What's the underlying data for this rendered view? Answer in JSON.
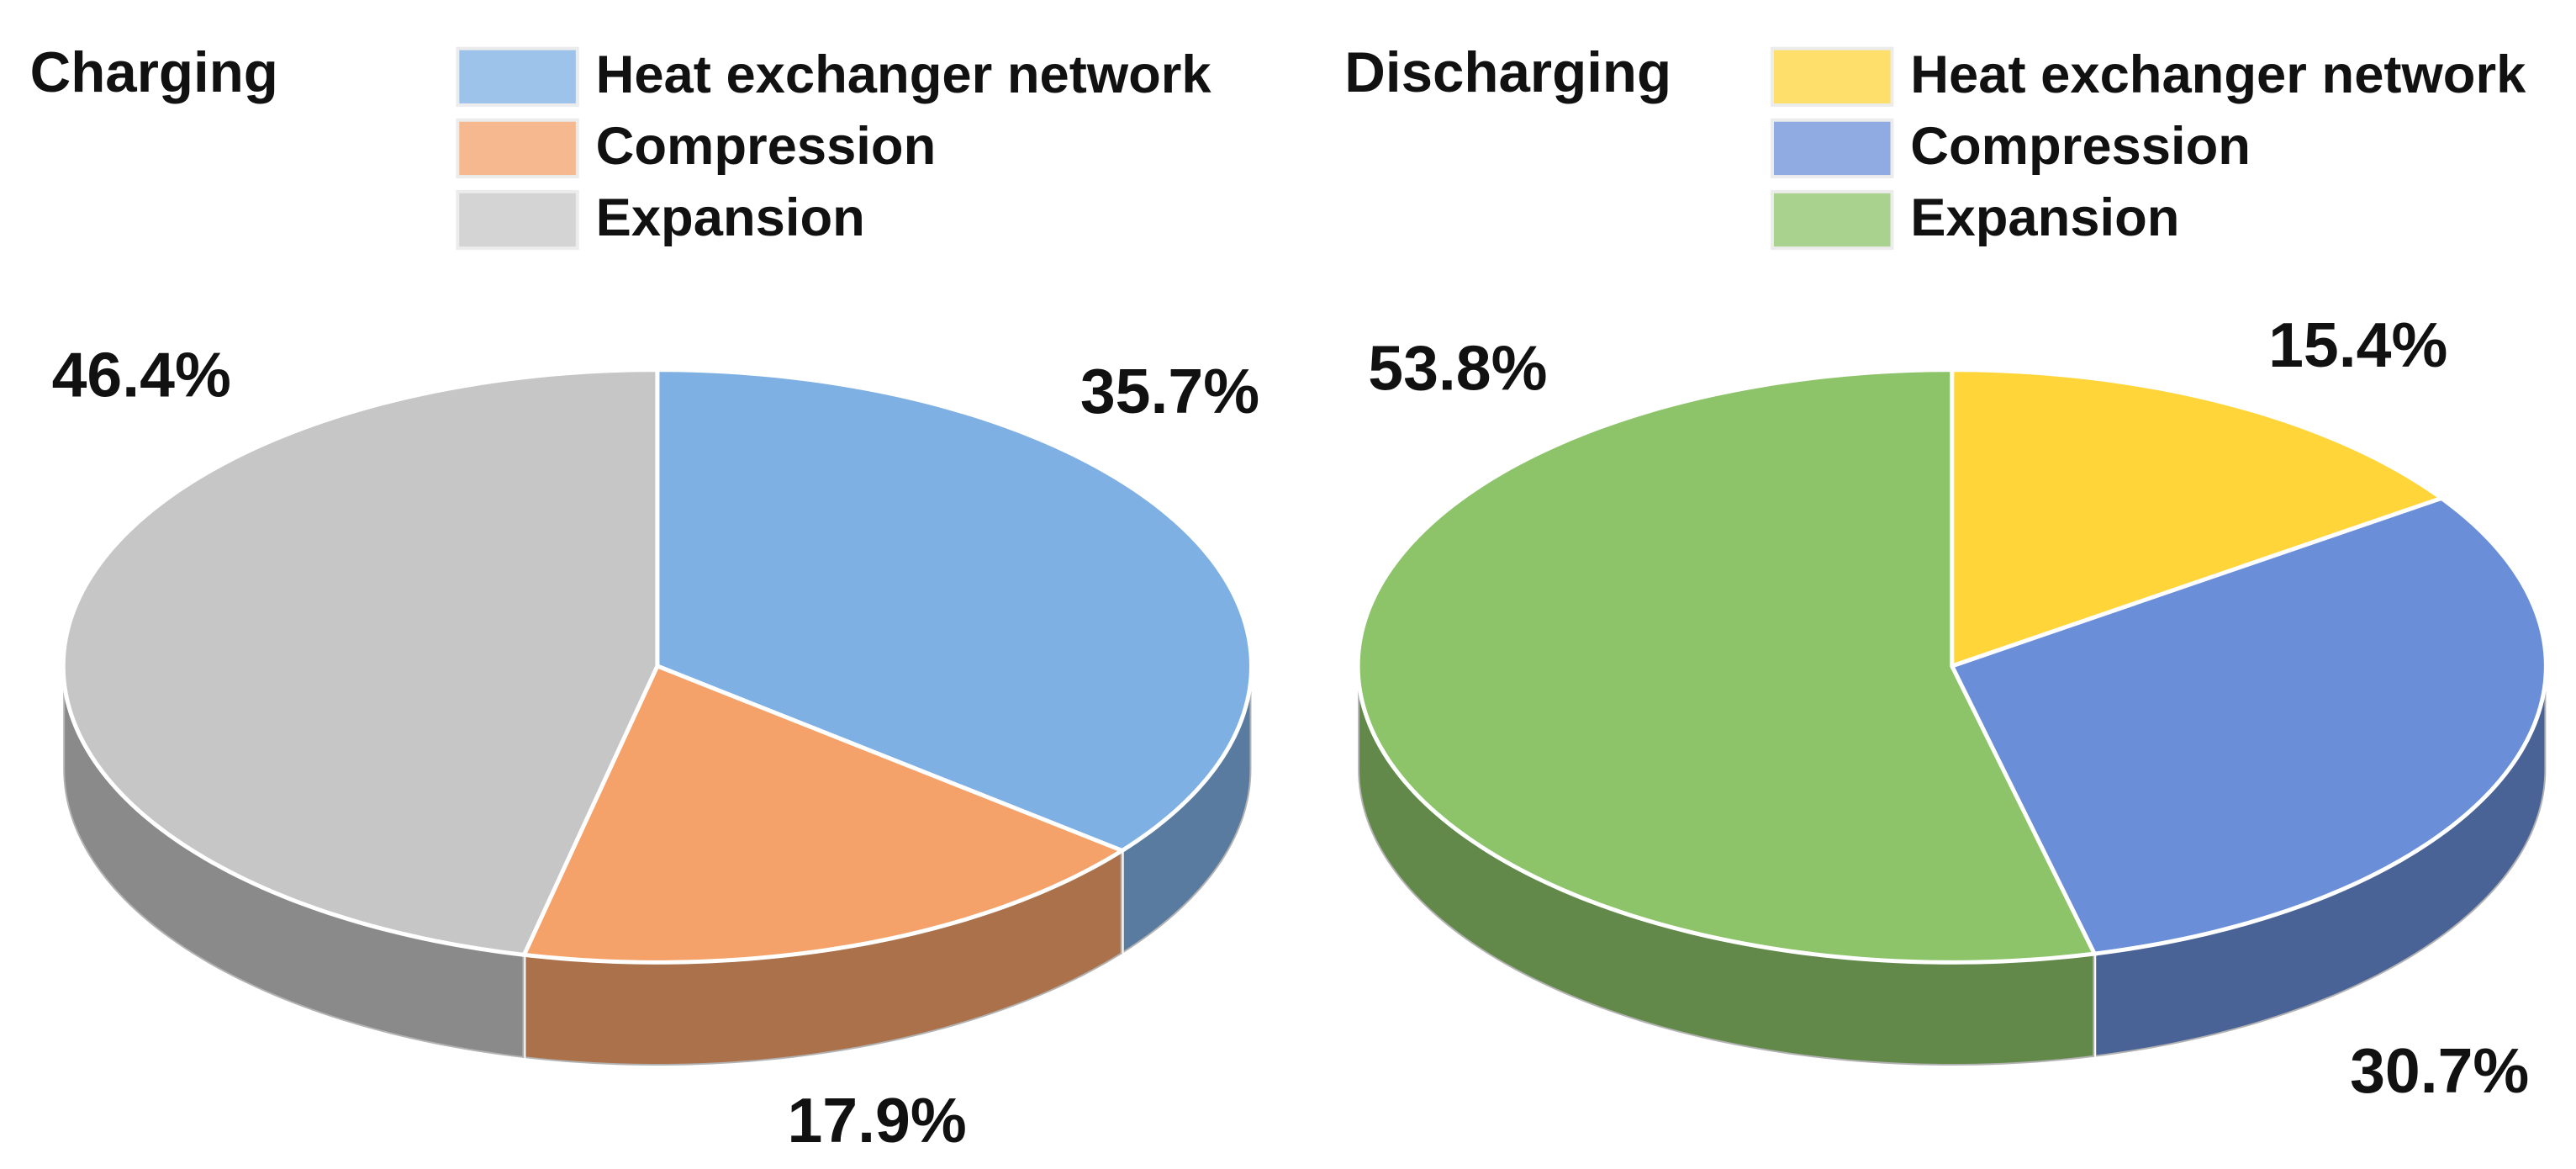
{
  "chart_data": [
    {
      "type": "pie",
      "title": "Charging",
      "categories": [
        "Heat exchanger network",
        "Compression",
        "Expansion"
      ],
      "values": [
        35.7,
        17.9,
        46.4
      ],
      "value_labels": [
        "35.7%",
        "17.9%",
        "46.4%"
      ],
      "colors": [
        "#7eb0e4",
        "#f4a26a",
        "#c6c6c6"
      ]
    },
    {
      "type": "pie",
      "title": "Discharging",
      "categories": [
        "Heat exchanger network",
        "Compression",
        "Expansion"
      ],
      "values": [
        15.4,
        30.7,
        53.8
      ],
      "value_labels": [
        "15.4%",
        "30.7%",
        "53.8%"
      ],
      "colors": [
        "#ffd53a",
        "#6a8fd8",
        "#8dc46a"
      ]
    }
  ]
}
